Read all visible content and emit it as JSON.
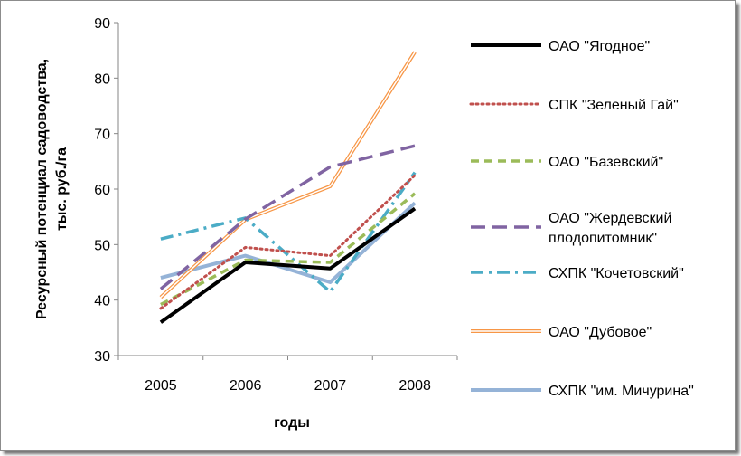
{
  "chart_data": {
    "type": "line",
    "xlabel": "годы",
    "ylabel": [
      "Ресурсный потенциал садоводства,",
      "тыс. руб./га"
    ],
    "categories": [
      "2005",
      "2006",
      "2007",
      "2008"
    ],
    "ylim": [
      30,
      90
    ],
    "yticks": [
      30,
      40,
      50,
      60,
      70,
      80,
      90
    ],
    "grid": false,
    "legend": "right",
    "series": [
      {
        "name": "ОАО \"Ягодное\"",
        "values": [
          36,
          46.8,
          45.7,
          56.5
        ],
        "color": "#000000",
        "style": "solid-thick"
      },
      {
        "name": "СПК \"Зеленый Гай\"",
        "values": [
          38.5,
          49.5,
          48,
          62.5
        ],
        "color": "#c0504d",
        "style": "dotted"
      },
      {
        "name": "ОАО \"Базевский\"",
        "values": [
          39.2,
          47.2,
          46.8,
          59.2
        ],
        "color": "#9bbb59",
        "style": "dashed"
      },
      {
        "name": "ОАО \"Жердевский плодопитомник\"",
        "values": [
          42,
          54.6,
          64,
          67.8
        ],
        "color": "#8064a2",
        "style": "long-dash"
      },
      {
        "name": "СХПК \"Кочетовский\"",
        "values": [
          51,
          54.8,
          41.5,
          63
        ],
        "color": "#4bacc6",
        "style": "dash-dot"
      },
      {
        "name": "ОАО \"Дубовое\"",
        "values": [
          40.5,
          54.5,
          60.5,
          84.7
        ],
        "color": "#f79646",
        "style": "double"
      },
      {
        "name": "СХПК \"им. Мичурина\"",
        "values": [
          44,
          48,
          43.2,
          57.5
        ],
        "color": "#95b3d7",
        "style": "solid-wide"
      }
    ],
    "legend_lines": [
      [
        "ОАО \"Ягодное\""
      ],
      [
        "СПК \"Зеленый Гай\""
      ],
      [
        "ОАО \"Базевский\""
      ],
      [
        "ОАО \"Жердевский",
        "плодопитомник\""
      ],
      [
        "СХПК \"Кочетовский\""
      ],
      [
        "ОАО \"Дубовое\""
      ],
      [
        "СХПК \"им. Мичурина\""
      ]
    ]
  }
}
